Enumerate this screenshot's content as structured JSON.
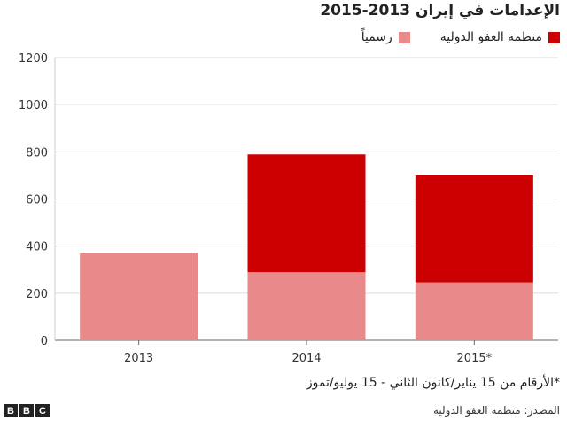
{
  "chart_data": {
    "type": "bar",
    "stacked": true,
    "title": "الإعدامات في إيران 2013-2015",
    "categories": [
      "2013",
      "2014",
      "2015*"
    ],
    "series": [
      {
        "name": "رسمياً",
        "values": [
          369,
          289,
          246
        ],
        "color": "#e88a8a"
      },
      {
        "name": "منظمة العفو الدولية",
        "values": [
          0,
          500,
          454
        ],
        "color": "#cc0000"
      }
    ],
    "ylim": [
      0,
      1200
    ],
    "yticks": [
      0,
      200,
      400,
      600,
      800,
      1000,
      1200
    ],
    "grid": true,
    "legend_position": "top-right"
  },
  "footnote": "*الأرقام من 15 يناير/كانون الثاني - 15 يوليو/تموز",
  "source": "المصدر: منظمة العفو الدولية",
  "logo": [
    "B",
    "B",
    "C"
  ]
}
